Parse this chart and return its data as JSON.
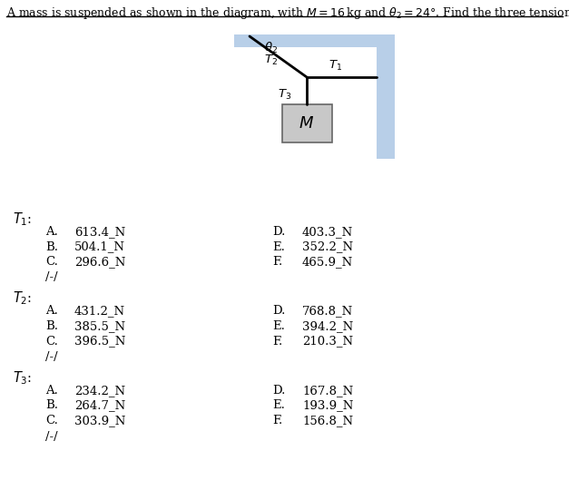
{
  "bg_color": "#ffffff",
  "ceiling_color": "#b8cfe8",
  "wall_color": "#b8cfe8",
  "rope_color": "#000000",
  "box_color": "#c8c8c8",
  "box_edge": "#666666",
  "title": "A mass is suspended as shown in the diagram, with $M = 16\\,$kg and $\\theta_2 = 24°$. Find the three tensions.",
  "T1_vals": [
    "613.4_N",
    "504.1_N",
    "296.6_N",
    "403.3_N",
    "352.2_N",
    "465.9_N"
  ],
  "T2_vals": [
    "431.2_N",
    "385.5_N",
    "396.5_N",
    "768.8_N",
    "394.2_N",
    "210.3_N"
  ],
  "T3_vals": [
    "234.2_N",
    "264.7_N",
    "303.9_N",
    "167.8_N",
    "193.9_N",
    "156.8_N"
  ],
  "letters_left": [
    "A",
    "B",
    "C"
  ],
  "letters_right": [
    "D",
    "E",
    "F"
  ],
  "separator": "/-/"
}
